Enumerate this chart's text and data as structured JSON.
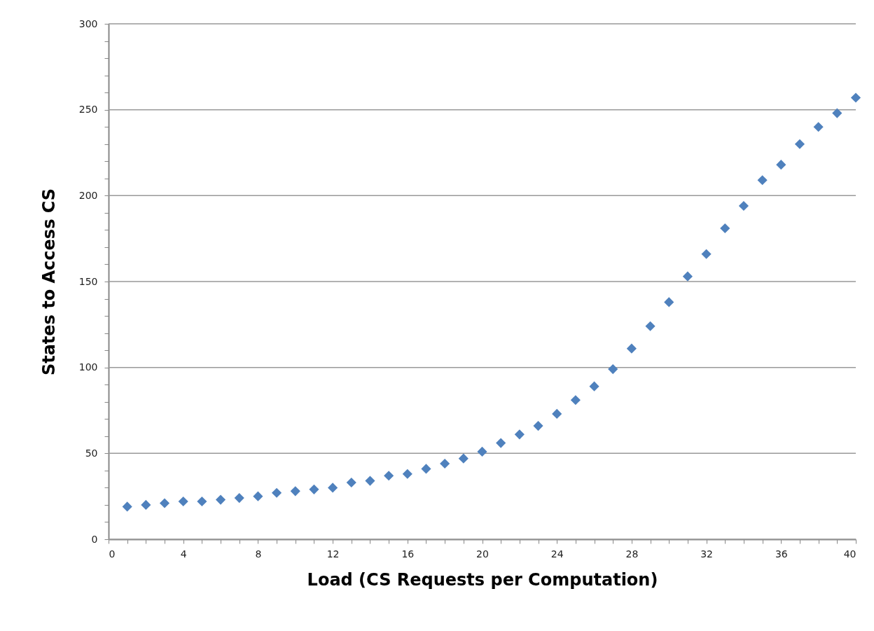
{
  "chart_data": {
    "type": "scatter",
    "xlabel": "Load (CS Requests per Computation)",
    "ylabel": "States to Access CS",
    "x": [
      1,
      2,
      3,
      4,
      5,
      6,
      7,
      8,
      9,
      10,
      11,
      12,
      13,
      14,
      15,
      16,
      17,
      18,
      19,
      20,
      21,
      22,
      23,
      24,
      25,
      26,
      27,
      28,
      29,
      30,
      31,
      32,
      33,
      34,
      35,
      36,
      37,
      38,
      39,
      40
    ],
    "series": [
      {
        "color": "#4f81bd",
        "values": [
          19,
          20,
          21,
          22,
          22,
          23,
          24,
          25,
          27,
          28,
          29,
          30,
          33,
          34,
          37,
          38,
          41,
          44,
          47,
          51,
          56,
          61,
          66,
          73,
          81,
          89,
          99,
          111,
          124,
          138,
          153,
          166,
          181,
          194,
          209,
          218,
          230,
          240,
          248,
          257
        ]
      }
    ],
    "xlim": [
      0,
      40
    ],
    "xticks": [
      0,
      {
        "value": 1,
        "label": null
      },
      {
        "value": 2,
        "label": null
      },
      {
        "value": 3,
        "label": null
      },
      4,
      {
        "value": 5,
        "label": null
      },
      {
        "value": 6,
        "label": null
      },
      {
        "value": 7,
        "label": null
      },
      8,
      {
        "value": 9,
        "label": null
      },
      {
        "value": 10,
        "label": null
      },
      {
        "value": 11,
        "label": null
      },
      12,
      {
        "value": 13,
        "label": null
      },
      {
        "value": 14,
        "label": null
      },
      {
        "value": 15,
        "label": null
      },
      16,
      {
        "value": 17,
        "label": null
      },
      {
        "value": 18,
        "label": null
      },
      {
        "value": 19,
        "label": null
      },
      20,
      {
        "value": 21,
        "label": null
      },
      {
        "value": 22,
        "label": null
      },
      {
        "value": 23,
        "label": null
      },
      24,
      {
        "value": 25,
        "label": null
      },
      {
        "value": 26,
        "label": null
      },
      {
        "value": 27,
        "label": null
      },
      28,
      {
        "value": 29,
        "label": null
      },
      {
        "value": 30,
        "label": null
      },
      {
        "value": 31,
        "label": null
      },
      32,
      {
        "value": 33,
        "label": null
      },
      {
        "value": 34,
        "label": null
      },
      {
        "value": 35,
        "label": null
      },
      36,
      {
        "value": 37,
        "label": null
      },
      {
        "value": 38,
        "label": null
      },
      {
        "value": 39,
        "label": null
      },
      40
    ],
    "ylim": [
      0,
      300
    ],
    "yticks": [
      0,
      {
        "value": 10,
        "label": null
      },
      {
        "value": 20,
        "label": null
      },
      {
        "value": 30,
        "label": null
      },
      {
        "value": 40,
        "label": null
      },
      50,
      {
        "value": 60,
        "label": null
      },
      {
        "value": 70,
        "label": null
      },
      {
        "value": 80,
        "label": null
      },
      {
        "value": 90,
        "label": null
      },
      100,
      {
        "value": 110,
        "label": null
      },
      {
        "value": 120,
        "label": null
      },
      {
        "value": 130,
        "label": null
      },
      {
        "value": 140,
        "label": null
      },
      150,
      {
        "value": 160,
        "label": null
      },
      {
        "value": 170,
        "label": null
      },
      {
        "value": 180,
        "label": null
      },
      {
        "value": 190,
        "label": null
      },
      200,
      {
        "value": 210,
        "label": null
      },
      {
        "value": 220,
        "label": null
      },
      {
        "value": 230,
        "label": null
      },
      {
        "value": 240,
        "label": null
      },
      250,
      {
        "value": 260,
        "label": null
      },
      {
        "value": 270,
        "label": null
      },
      {
        "value": 280,
        "label": null
      },
      {
        "value": 290,
        "label": null
      },
      300
    ],
    "grid": "y",
    "marker": "diamond"
  }
}
